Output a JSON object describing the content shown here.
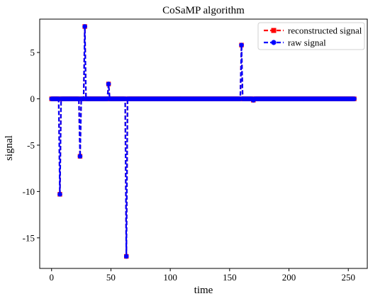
{
  "chart_data": {
    "type": "line",
    "title": "CoSaMP algorithm",
    "xlabel": "time",
    "ylabel": "signal",
    "xlim": [
      -10,
      266
    ],
    "ylim": [
      -18.3,
      8.6
    ],
    "xticks": [
      0,
      50,
      100,
      150,
      200,
      250
    ],
    "yticks": [
      5,
      0,
      -5,
      -10,
      -15
    ],
    "ytick_labels": [
      "5",
      "0",
      "-5",
      "-10",
      "-15"
    ],
    "grid": false,
    "legend_position": "top-right",
    "n_samples": 256,
    "spikes": [
      {
        "x": 7,
        "y": -10.3
      },
      {
        "x": 24,
        "y": -6.2
      },
      {
        "x": 28,
        "y": 7.8
      },
      {
        "x": 48,
        "y": 1.6
      },
      {
        "x": 63,
        "y": -17.0
      },
      {
        "x": 160,
        "y": 5.8
      },
      {
        "x": 170,
        "y": -0.15
      }
    ],
    "series": [
      {
        "name": "reconstructed signal",
        "color": "#ff0000",
        "marker": "square",
        "linestyle": "dashed"
      },
      {
        "name": "raw signal",
        "color": "#0000ff",
        "marker": "circle",
        "linestyle": "dashed"
      }
    ]
  }
}
